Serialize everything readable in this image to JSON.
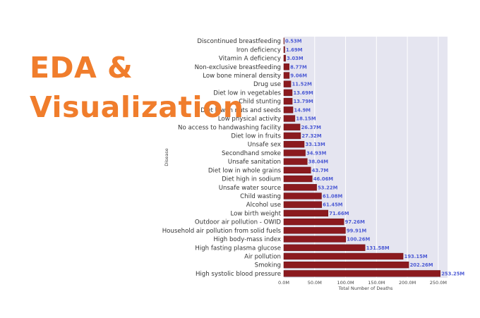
{
  "overlay": {
    "line1": "EDA &",
    "line2": "Visualization"
  },
  "colors": {
    "bar": "#8b1a1f",
    "value_label": "#4d5bd4",
    "plot_bg": "#e5e5f0",
    "grid": "#ffffff",
    "title": "#f07d2c"
  },
  "chart_data": {
    "type": "bar",
    "orientation": "horizontal",
    "xlabel": "Total Number of Deaths",
    "ylabel": "Disease",
    "xlim": [
      0,
      265
    ],
    "xticks": [
      0,
      50,
      100,
      150,
      200,
      250
    ],
    "xtick_labels": [
      "0.0M",
      "50.0M",
      "100.0M",
      "150.0M",
      "200.0M",
      "250.0M"
    ],
    "grid": true,
    "categories": [
      "Discontinued breastfeeding",
      "Iron deficiency",
      "Vitamin A deficiency",
      "Non-exclusive breastfeeding",
      "Low bone mineral density",
      "Drug use",
      "Diet low in vegetables",
      "Child stunting",
      "Diet low in nuts and seeds",
      "Low physical activity",
      "No access to handwashing facility",
      "Diet low in fruits",
      "Unsafe sex",
      "Secondhand smoke",
      "Unsafe sanitation",
      "Diet low in whole grains",
      "Diet high in sodium",
      "Unsafe water source",
      "Child wasting",
      "Alcohol use",
      "Low birth weight",
      "Outdoor air pollution - OWID",
      "Household air pollution from solid fuels",
      "High body-mass index",
      "High fasting plasma glucose",
      "Air pollution",
      "Smoking",
      "High systolic blood pressure"
    ],
    "values": [
      0.53,
      1.69,
      3.03,
      8.77,
      9.06,
      11.52,
      13.69,
      13.79,
      14.9,
      18.15,
      26.37,
      27.32,
      33.13,
      34.93,
      38.04,
      43.7,
      46.06,
      53.22,
      61.08,
      61.45,
      71.66,
      97.26,
      99.91,
      100.26,
      131.58,
      193.15,
      202.26,
      253.25
    ],
    "value_labels": [
      "0.53M",
      "1.69M",
      "3.03M",
      "8.77M",
      "9.06M",
      "11.52M",
      "13.69M",
      "13.79M",
      "14.9M",
      "18.15M",
      "26.37M",
      "27.32M",
      "33.13M",
      "34.93M",
      "38.04M",
      "43.7M",
      "46.06M",
      "53.22M",
      "61.08M",
      "61.45M",
      "71.66M",
      "97.26M",
      "99.91M",
      "100.26M",
      "131.58M",
      "193.15M",
      "202.26M",
      "253.25M"
    ]
  }
}
